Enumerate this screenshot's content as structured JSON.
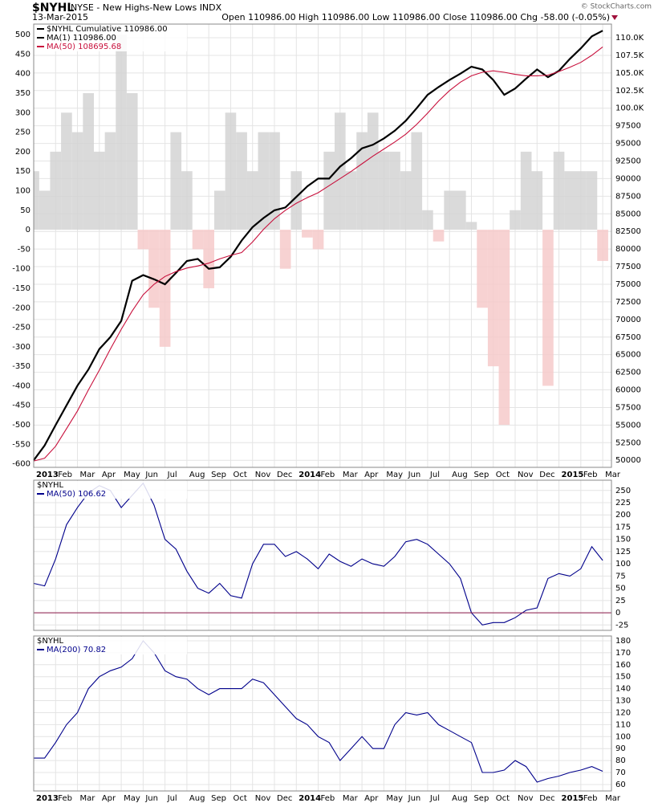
{
  "header": {
    "symbol": "$NYHL",
    "name": "NYSE - New Highs-New Lows INDX",
    "date": "13-Mar-2015",
    "quote": "Open 110986.00  High 110986.00  Low 110986.00  Close 110986.00  Chg -58.00 (-0.05%)",
    "source": "© StockCharts.com"
  },
  "chart_data": [
    {
      "type": "line",
      "title": "$NYHL Cumulative 110986.00",
      "x": [
        0,
        0.5,
        1,
        1.5,
        2,
        2.5,
        3,
        3.5,
        4,
        4.5,
        5,
        5.5,
        6,
        6.5,
        7,
        7.5,
        8,
        8.5,
        9,
        9.5,
        10,
        10.5,
        11,
        11.5,
        12,
        12.5,
        13,
        13.5,
        14,
        14.5,
        15,
        15.5,
        16,
        16.5,
        17,
        17.5,
        18,
        18.5,
        19,
        19.5,
        20,
        20.5,
        21,
        21.5,
        22,
        22.5,
        23,
        23.5,
        24,
        24.5,
        25,
        25.5,
        26
      ],
      "xlim": [
        0,
        26.4
      ],
      "xticks": [
        {
          "value": 0,
          "label": "2013"
        },
        {
          "value": 1,
          "label": "Feb"
        },
        {
          "value": 2,
          "label": "Mar"
        },
        {
          "value": 3,
          "label": "Apr"
        },
        {
          "value": 4,
          "label": "May"
        },
        {
          "value": 5,
          "label": "Jun"
        },
        {
          "value": 6,
          "label": "Jul"
        },
        {
          "value": 7,
          "label": "Aug"
        },
        {
          "value": 8,
          "label": "Sep"
        },
        {
          "value": 9,
          "label": "Oct"
        },
        {
          "value": 10,
          "label": "Nov"
        },
        {
          "value": 11,
          "label": "Dec"
        },
        {
          "value": 12,
          "label": "2014"
        },
        {
          "value": 13,
          "label": "Feb"
        },
        {
          "value": 14,
          "label": "Mar"
        },
        {
          "value": 15,
          "label": "Apr"
        },
        {
          "value": 16,
          "label": "May"
        },
        {
          "value": 17,
          "label": "Jun"
        },
        {
          "value": 18,
          "label": "Jul"
        },
        {
          "value": 19,
          "label": "Aug"
        },
        {
          "value": 20,
          "label": "Sep"
        },
        {
          "value": 21,
          "label": "Oct"
        },
        {
          "value": 22,
          "label": "Nov"
        },
        {
          "value": 23,
          "label": "Dec"
        },
        {
          "value": 24,
          "label": "2015"
        },
        {
          "value": 25,
          "label": "Feb"
        },
        {
          "value": 26,
          "label": "Mar"
        }
      ],
      "ylim": [
        -609,
        527
      ],
      "yticks": [
        -600,
        -550,
        -500,
        -450,
        -400,
        -350,
        -300,
        -250,
        -200,
        -150,
        -100,
        -50,
        0,
        50,
        100,
        150,
        200,
        250,
        300,
        350,
        400,
        450,
        500
      ],
      "y2lim": [
        49000,
        111940
      ],
      "y2ticks": [
        {
          "value": 110000,
          "label": "110.0K"
        },
        {
          "value": 107500,
          "label": "107.5K"
        },
        {
          "value": 105000,
          "label": "105.0K"
        },
        {
          "value": 102500,
          "label": "102.5K"
        },
        {
          "value": 100000,
          "label": "100.0K"
        },
        97500,
        95000,
        92500,
        90000,
        87500,
        85000,
        82500,
        80000,
        77500,
        75000,
        72500,
        70000,
        67500,
        65000,
        62500,
        60000,
        57500,
        55000,
        52500,
        50000
      ],
      "grid": true,
      "series": [
        {
          "color": "#d4d4d4",
          "negative_color": "#f6caca",
          "axis": "y",
          "values": [
            150,
            100,
            200,
            300,
            250,
            350,
            200,
            250,
            500,
            350,
            -50,
            -200,
            -300,
            250,
            150,
            -50,
            -150,
            100,
            300,
            250,
            150,
            250,
            250,
            -100,
            150,
            -20,
            -50,
            200,
            300,
            150,
            250,
            300,
            200,
            200,
            150,
            250,
            50,
            -30,
            100,
            100,
            20,
            -200,
            -350,
            -500,
            50,
            200,
            150,
            -400,
            200,
            150,
            150,
            150,
            -80
          ]
        },
        {
          "name": "MA(1) 110986.00",
          "color": "#000000",
          "axis": "y2",
          "values": [
            50000,
            52100,
            55000,
            57800,
            60600,
            62900,
            65800,
            67500,
            69800,
            75500,
            76300,
            75700,
            75000,
            76600,
            78300,
            78600,
            77200,
            77400,
            78900,
            81200,
            83100,
            84400,
            85500,
            85900,
            87400,
            88900,
            90000,
            90000,
            91700,
            92900,
            94300,
            94800,
            95700,
            96800,
            98200,
            100000,
            101900,
            103000,
            104000,
            104900,
            105900,
            105500,
            104000,
            101900,
            102800,
            104200,
            105500,
            104400,
            105300,
            107000,
            108500,
            110200,
            111000
          ]
        },
        {
          "name": "MA(50) 108695.68",
          "color": "#c8103c",
          "axis": "y2",
          "values": [
            49900,
            50300,
            52000,
            54500,
            57000,
            60000,
            62800,
            65800,
            68600,
            71200,
            73500,
            75000,
            76100,
            76800,
            77300,
            77600,
            78000,
            78600,
            79100,
            79500,
            81000,
            82800,
            84300,
            85500,
            86500,
            87300,
            88000,
            89000,
            90000,
            91000,
            92100,
            93200,
            94200,
            95200,
            96300,
            97700,
            99300,
            101000,
            102500,
            103700,
            104600,
            105100,
            105300,
            105100,
            104800,
            104600,
            104600,
            104700,
            105200,
            105800,
            106500,
            107500,
            108700
          ]
        }
      ]
    },
    {
      "type": "line",
      "title": "$NYHL",
      "x": [
        0,
        0.5,
        1,
        1.5,
        2,
        2.5,
        3,
        3.5,
        4,
        4.5,
        5,
        5.5,
        6,
        6.5,
        7,
        7.5,
        8,
        8.5,
        9,
        9.5,
        10,
        10.5,
        11,
        11.5,
        12,
        12.5,
        13,
        13.5,
        14,
        14.5,
        15,
        15.5,
        16,
        16.5,
        17,
        17.5,
        18,
        18.5,
        19,
        19.5,
        20,
        20.5,
        21,
        21.5,
        22,
        22.5,
        23,
        23.5,
        24,
        24.5,
        25,
        25.5,
        26
      ],
      "xlim": [
        0,
        26.4
      ],
      "ylim": [
        -36,
        271
      ],
      "yticks": [
        -25,
        0,
        25,
        50,
        75,
        100,
        125,
        150,
        175,
        200,
        225,
        250
      ],
      "grid": true,
      "hline": 0,
      "hline_color": "#8b1a4a",
      "series": [
        {
          "name": "MA(50) 106.62",
          "color": "#00008b",
          "values": [
            60,
            55,
            110,
            180,
            215,
            245,
            260,
            250,
            215,
            240,
            265,
            220,
            150,
            130,
            85,
            50,
            40,
            60,
            35,
            30,
            100,
            140,
            140,
            115,
            125,
            110,
            90,
            120,
            105,
            95,
            110,
            100,
            95,
            115,
            145,
            150,
            140,
            120,
            100,
            70,
            0,
            -25,
            -20,
            -20,
            -10,
            5,
            10,
            70,
            80,
            75,
            90,
            135,
            107
          ]
        }
      ]
    },
    {
      "type": "line",
      "title": "$NYHL",
      "x": [
        0,
        0.5,
        1,
        1.5,
        2,
        2.5,
        3,
        3.5,
        4,
        4.5,
        5,
        5.5,
        6,
        6.5,
        7,
        7.5,
        8,
        8.5,
        9,
        9.5,
        10,
        10.5,
        11,
        11.5,
        12,
        12.5,
        13,
        13.5,
        14,
        14.5,
        15,
        15.5,
        16,
        16.5,
        17,
        17.5,
        18,
        18.5,
        19,
        19.5,
        20,
        20.5,
        21,
        21.5,
        22,
        22.5,
        23,
        23.5,
        24,
        24.5,
        25,
        25.5,
        26
      ],
      "xlim": [
        0,
        26.4
      ],
      "xticks": [
        {
          "value": 0,
          "label": "2013"
        },
        {
          "value": 1,
          "label": "Feb"
        },
        {
          "value": 2,
          "label": "Mar"
        },
        {
          "value": 3,
          "label": "Apr"
        },
        {
          "value": 4,
          "label": "May"
        },
        {
          "value": 5,
          "label": "Jun"
        },
        {
          "value": 6,
          "label": "Jul"
        },
        {
          "value": 7,
          "label": "Aug"
        },
        {
          "value": 8,
          "label": "Sep"
        },
        {
          "value": 9,
          "label": "Oct"
        },
        {
          "value": 10,
          "label": "Nov"
        },
        {
          "value": 11,
          "label": "Dec"
        },
        {
          "value": 12,
          "label": "2014"
        },
        {
          "value": 13,
          "label": "Feb"
        },
        {
          "value": 14,
          "label": "Mar"
        },
        {
          "value": 15,
          "label": "Apr"
        },
        {
          "value": 16,
          "label": "May"
        },
        {
          "value": 17,
          "label": "Jun"
        },
        {
          "value": 18,
          "label": "Jul"
        },
        {
          "value": 19,
          "label": "Aug"
        },
        {
          "value": 20,
          "label": "Sep"
        },
        {
          "value": 21,
          "label": "Oct"
        },
        {
          "value": 22,
          "label": "Nov"
        },
        {
          "value": 23,
          "label": "Dec"
        },
        {
          "value": 24,
          "label": "2015"
        },
        {
          "value": 25,
          "label": "Feb"
        },
        {
          "value": 26,
          "label": "Mar"
        }
      ],
      "ylim": [
        54.6,
        184
      ],
      "yticks": [
        60,
        70,
        80,
        90,
        100,
        110,
        120,
        130,
        140,
        150,
        160,
        170,
        180
      ],
      "grid": true,
      "series": [
        {
          "name": "MA(200) 70.82",
          "color": "#00008b",
          "values": [
            82,
            82,
            95,
            110,
            120,
            140,
            150,
            155,
            158,
            165,
            180,
            170,
            155,
            150,
            148,
            140,
            135,
            140,
            140,
            140,
            148,
            145,
            135,
            125,
            115,
            110,
            100,
            95,
            80,
            90,
            100,
            90,
            90,
            110,
            120,
            118,
            120,
            110,
            105,
            100,
            95,
            70,
            70,
            72,
            80,
            75,
            62,
            65,
            67,
            70,
            72,
            75,
            71
          ]
        }
      ]
    }
  ]
}
